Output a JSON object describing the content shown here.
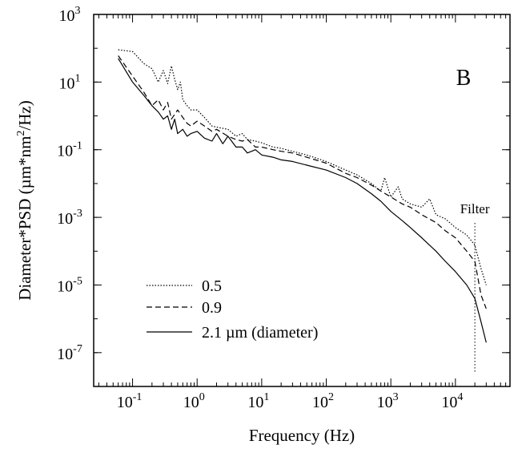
{
  "chart_data": {
    "type": "line",
    "panel_label": "B",
    "xlabel": "Frequency (Hz)",
    "ylabel": "Diameter*PSD (µm*nm²/Hz)",
    "xscale": "log",
    "yscale": "log",
    "xlim": [
      0.025,
      70000
    ],
    "ylim": [
      1e-08,
      1000
    ],
    "x_major_ticks": [
      {
        "value": 0.1,
        "base": "10",
        "exp": "-1"
      },
      {
        "value": 1,
        "base": "10",
        "exp": "0"
      },
      {
        "value": 10,
        "base": "10",
        "exp": "1"
      },
      {
        "value": 100,
        "base": "10",
        "exp": "2"
      },
      {
        "value": 1000,
        "base": "10",
        "exp": "3"
      },
      {
        "value": 10000,
        "base": "10",
        "exp": "4"
      }
    ],
    "y_major_ticks": [
      {
        "value": 1e-07,
        "base": "10",
        "exp": "-7"
      },
      {
        "value": 1e-05,
        "base": "10",
        "exp": "-5"
      },
      {
        "value": 0.001,
        "base": "10",
        "exp": "-3"
      },
      {
        "value": 0.1,
        "base": "10",
        "exp": "-1"
      },
      {
        "value": 10,
        "base": "10",
        "exp": "1"
      },
      {
        "value": 1000,
        "base": "10",
        "exp": "3"
      }
    ],
    "grid": false,
    "legend_position": "bottom-left",
    "annotation": {
      "text": "Filter",
      "x": 20000
    },
    "series": [
      {
        "name": "0.5",
        "style": "dotted",
        "x": [
          0.06,
          0.1,
          0.15,
          0.2,
          0.25,
          0.3,
          0.35,
          0.4,
          0.45,
          0.5,
          0.55,
          0.6,
          0.7,
          0.8,
          1,
          1.3,
          1.7,
          2.2,
          3,
          4,
          5,
          6,
          8,
          10,
          15,
          20,
          30,
          50,
          100,
          200,
          300,
          500,
          700,
          800,
          1000,
          1300,
          1500,
          2000,
          3000,
          4000,
          5000,
          7000,
          10000,
          15000,
          20000,
          25000,
          30000
        ],
        "y": [
          90,
          80,
          35,
          25,
          10,
          22,
          9,
          30,
          12,
          6,
          10,
          3,
          2,
          1.5,
          1.5,
          0.9,
          0.5,
          0.45,
          0.4,
          0.25,
          0.3,
          0.2,
          0.18,
          0.16,
          0.12,
          0.11,
          0.09,
          0.07,
          0.045,
          0.025,
          0.018,
          0.01,
          0.006,
          0.015,
          0.004,
          0.008,
          0.0035,
          0.0025,
          0.002,
          0.0035,
          0.0012,
          0.0009,
          0.0005,
          0.0003,
          0.00015,
          3e-05,
          1e-05
        ]
      },
      {
        "name": "0.9",
        "style": "dashed",
        "x": [
          0.06,
          0.1,
          0.15,
          0.2,
          0.25,
          0.3,
          0.35,
          0.4,
          0.5,
          0.6,
          0.7,
          0.8,
          1,
          1.3,
          1.7,
          2,
          3,
          4,
          5,
          6,
          8,
          10,
          15,
          20,
          30,
          50,
          100,
          200,
          300,
          500,
          700,
          1000,
          1500,
          2000,
          3000,
          5000,
          7000,
          10000,
          15000,
          20000,
          25000,
          30000
        ],
        "y": [
          60,
          15,
          5,
          2,
          3,
          1.5,
          2.5,
          0.8,
          1.5,
          0.9,
          0.6,
          0.5,
          0.7,
          0.5,
          0.35,
          0.4,
          0.25,
          0.2,
          0.18,
          0.2,
          0.12,
          0.12,
          0.1,
          0.09,
          0.08,
          0.06,
          0.04,
          0.02,
          0.015,
          0.009,
          0.006,
          0.004,
          0.0025,
          0.002,
          0.0012,
          0.0007,
          0.0004,
          0.00025,
          0.0001,
          5e-05,
          5e-06,
          2e-06
        ]
      },
      {
        "name": "2.1 µm (diameter)",
        "style": "solid",
        "x": [
          0.06,
          0.1,
          0.15,
          0.2,
          0.25,
          0.3,
          0.35,
          0.4,
          0.45,
          0.5,
          0.6,
          0.7,
          0.8,
          1,
          1.3,
          1.7,
          2,
          2.5,
          3,
          4,
          5,
          6,
          8,
          10,
          15,
          20,
          30,
          50,
          100,
          200,
          300,
          500,
          700,
          1000,
          1500,
          2000,
          3000,
          5000,
          7000,
          10000,
          15000,
          20000,
          25000,
          30000
        ],
        "y": [
          50,
          10,
          4,
          2,
          1.3,
          0.8,
          1,
          0.4,
          0.8,
          0.3,
          0.4,
          0.25,
          0.3,
          0.35,
          0.22,
          0.18,
          0.3,
          0.15,
          0.25,
          0.12,
          0.12,
          0.08,
          0.1,
          0.07,
          0.06,
          0.05,
          0.045,
          0.035,
          0.025,
          0.015,
          0.01,
          0.005,
          0.003,
          0.0015,
          0.0008,
          0.0005,
          0.00025,
          0.0001,
          5e-05,
          2.5e-05,
          1e-05,
          4e-06,
          8e-07,
          2e-07
        ]
      }
    ]
  }
}
